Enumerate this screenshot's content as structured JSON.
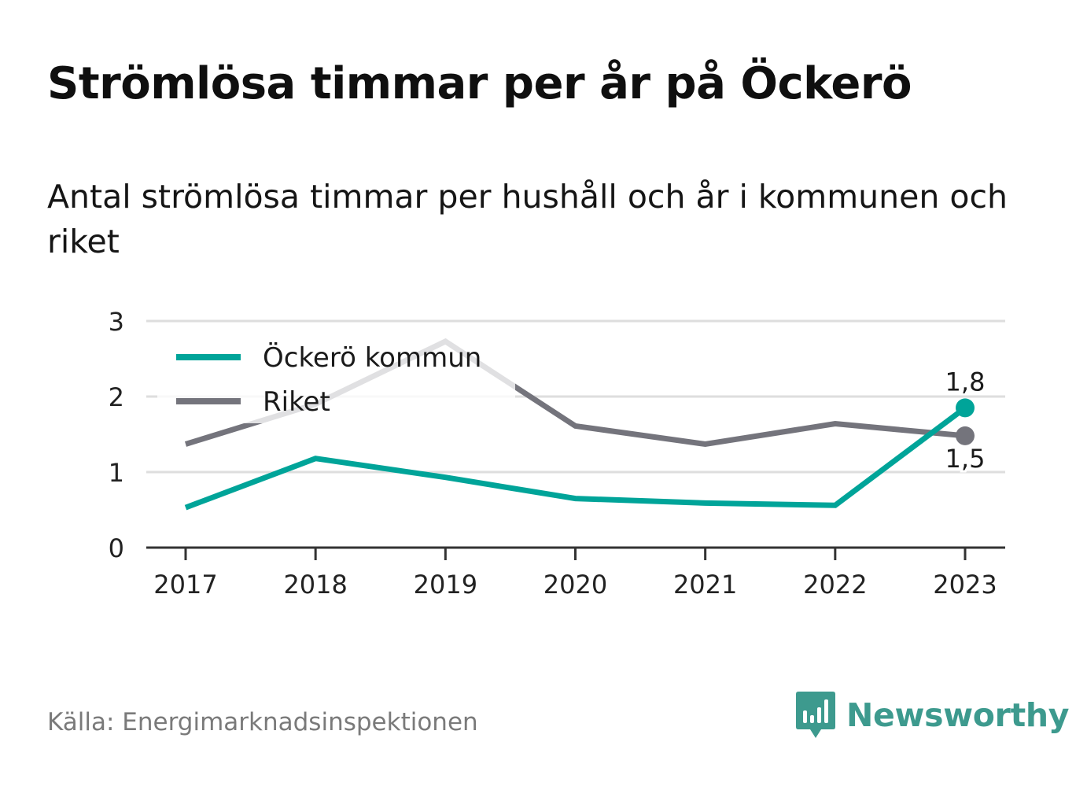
{
  "header": {
    "title": "Strömlösa timmar per år på Öckerö",
    "subtitle": "Antal strömlösa timmar per hushåll och år i kommunen och riket"
  },
  "footer": {
    "source": "Källa: Energimarknadsinspektionen",
    "brand": "Newsworthy",
    "brand_icon": "bar-chart-speech-bubble-icon"
  },
  "colors": {
    "kommun": "#00a499",
    "riket": "#74747c",
    "grid": "#dedede",
    "axis": "#333333",
    "brand": "#3d9a8e"
  },
  "chart_data": {
    "type": "line",
    "title": "Strömlösa timmar per år på Öckerö",
    "xlabel": "",
    "ylabel": "",
    "categories": [
      "2017",
      "2018",
      "2019",
      "2020",
      "2021",
      "2022",
      "2023"
    ],
    "yticks": [
      "0",
      "1",
      "2",
      "3"
    ],
    "ylim": [
      0,
      3
    ],
    "grid": true,
    "legend_position": "top-left",
    "series": [
      {
        "name": "Öckerö kommun",
        "values": [
          0.53,
          1.18,
          0.93,
          0.65,
          0.59,
          0.56,
          1.85
        ],
        "end_label": "1,8"
      },
      {
        "name": "Riket",
        "values": [
          1.37,
          1.9,
          2.73,
          1.61,
          1.37,
          1.64,
          1.48
        ],
        "end_label": "1,5"
      }
    ]
  }
}
